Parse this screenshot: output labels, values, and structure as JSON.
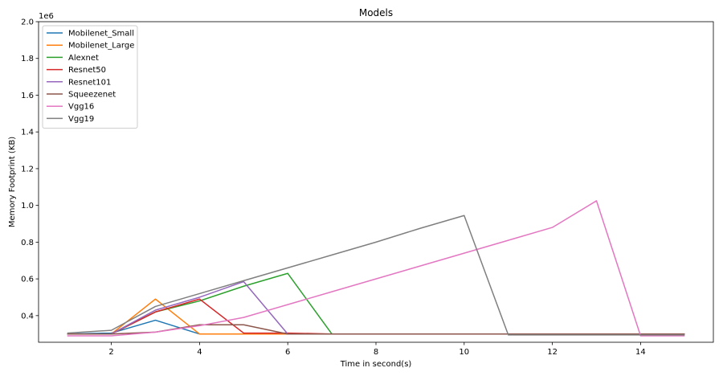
{
  "chart_data": {
    "type": "line",
    "title": "Models",
    "xlabel": "Time in second(s)",
    "ylabel": "Memory Footprint (KB)",
    "y_offset_label": "1e6",
    "xlim": [
      0.35,
      15.65
    ],
    "ylim": [
      0.255,
      2.0
    ],
    "xticks": [
      2,
      4,
      6,
      8,
      10,
      12,
      14
    ],
    "yticks": [
      0.4,
      0.6,
      0.8,
      1.0,
      1.2,
      1.4,
      1.6,
      1.8,
      2.0
    ],
    "ytick_labels": [
      "0.4",
      "0.6",
      "0.8",
      "1.0",
      "1.2",
      "1.4",
      "1.6",
      "1.8",
      "2.0"
    ],
    "legend_position": "top-left",
    "grid": false,
    "series": [
      {
        "name": "Mobilenet_Small",
        "color": "#1f77b4",
        "x": [
          1,
          2,
          3,
          4,
          5,
          6,
          7,
          8,
          9,
          10,
          11,
          12,
          13,
          14,
          15
        ],
        "y": [
          0.3,
          0.305,
          0.375,
          0.3,
          0.3,
          0.3,
          0.3,
          0.3,
          0.3,
          0.3,
          0.3,
          0.3,
          0.3,
          0.3,
          0.3
        ]
      },
      {
        "name": "Mobilenet_Large",
        "color": "#ff7f0e",
        "x": [
          1,
          2,
          3,
          4,
          5,
          6,
          7,
          8,
          9,
          10,
          11,
          12,
          13,
          14,
          15
        ],
        "y": [
          0.3,
          0.3,
          0.49,
          0.3,
          0.3,
          0.3,
          0.3,
          0.3,
          0.3,
          0.3,
          0.3,
          0.3,
          0.3,
          0.3,
          0.3
        ]
      },
      {
        "name": "Alexnet",
        "color": "#2ca02c",
        "x": [
          1,
          2,
          3,
          4,
          5,
          6,
          7,
          8,
          9,
          10,
          11,
          12,
          13,
          14,
          15
        ],
        "y": [
          0.3,
          0.3,
          0.42,
          0.48,
          0.56,
          0.63,
          0.3,
          0.3,
          0.3,
          0.3,
          0.3,
          0.3,
          0.3,
          0.3,
          0.3
        ]
      },
      {
        "name": "Resnet50",
        "color": "#d62728",
        "x": [
          1,
          2,
          3,
          4,
          5,
          6,
          7,
          8,
          9,
          10,
          11,
          12,
          13,
          14,
          15
        ],
        "y": [
          0.3,
          0.3,
          0.42,
          0.49,
          0.305,
          0.305,
          0.3,
          0.3,
          0.3,
          0.3,
          0.3,
          0.3,
          0.3,
          0.3,
          0.3
        ]
      },
      {
        "name": "Resnet101",
        "color": "#9467bd",
        "x": [
          1,
          2,
          3,
          4,
          5,
          6,
          7,
          8,
          9,
          10,
          11,
          12,
          13,
          14,
          15
        ],
        "y": [
          0.3,
          0.3,
          0.43,
          0.5,
          0.585,
          0.3,
          0.3,
          0.3,
          0.3,
          0.3,
          0.3,
          0.3,
          0.3,
          0.3,
          0.3
        ]
      },
      {
        "name": "Squeezenet",
        "color": "#8c564b",
        "x": [
          1,
          2,
          3,
          4,
          5,
          6,
          7,
          8,
          9,
          10,
          11,
          12,
          13,
          14,
          15
        ],
        "y": [
          0.3,
          0.3,
          0.31,
          0.35,
          0.35,
          0.3,
          0.3,
          0.3,
          0.3,
          0.3,
          0.3,
          0.3,
          0.3,
          0.3,
          0.3
        ]
      },
      {
        "name": "Vgg16",
        "color": "#e377c2",
        "x": [
          1,
          2,
          3,
          4,
          5,
          6,
          7,
          8,
          9,
          10,
          11,
          12,
          13,
          14,
          15
        ],
        "y": [
          0.29,
          0.29,
          0.31,
          0.345,
          0.39,
          0.46,
          0.53,
          0.6,
          0.67,
          0.74,
          0.81,
          0.88,
          1.025,
          0.29,
          0.29
        ]
      },
      {
        "name": "Vgg19",
        "color": "#7f7f7f",
        "x": [
          1,
          2,
          3,
          4,
          5,
          6,
          7,
          8,
          9,
          10,
          11,
          12,
          13,
          14,
          15
        ],
        "y": [
          0.305,
          0.32,
          0.45,
          0.52,
          0.59,
          0.66,
          0.73,
          0.8,
          0.875,
          0.945,
          0.295,
          0.295,
          0.295,
          0.295,
          0.295
        ]
      }
    ]
  }
}
